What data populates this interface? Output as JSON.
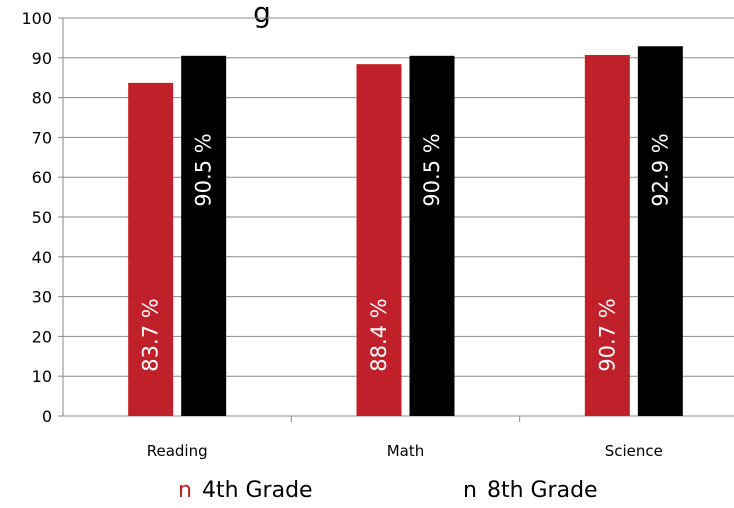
{
  "chart_data": {
    "type": "bar",
    "title": "g",
    "categories": [
      "Reading",
      "Math",
      "Science"
    ],
    "series": [
      {
        "name": "4th Grade",
        "values": [
          83.7,
          88.4,
          90.7
        ],
        "color": "#c0202a",
        "labels": [
          "83.7 %",
          "88.4 %",
          "90.7 %"
        ]
      },
      {
        "name": "8th Grade",
        "values": [
          90.5,
          90.5,
          92.9
        ],
        "color": "#000000",
        "labels": [
          "90.5 %",
          "90.5 %",
          "92.9 %"
        ]
      }
    ],
    "ylim": [
      0,
      100
    ],
    "yticks": [
      "0",
      "10",
      "20",
      "30",
      "40",
      "50",
      "60",
      "70",
      "80",
      "90",
      "100"
    ],
    "grid": true,
    "legend_position": "bottom",
    "legend_marker": "n"
  }
}
